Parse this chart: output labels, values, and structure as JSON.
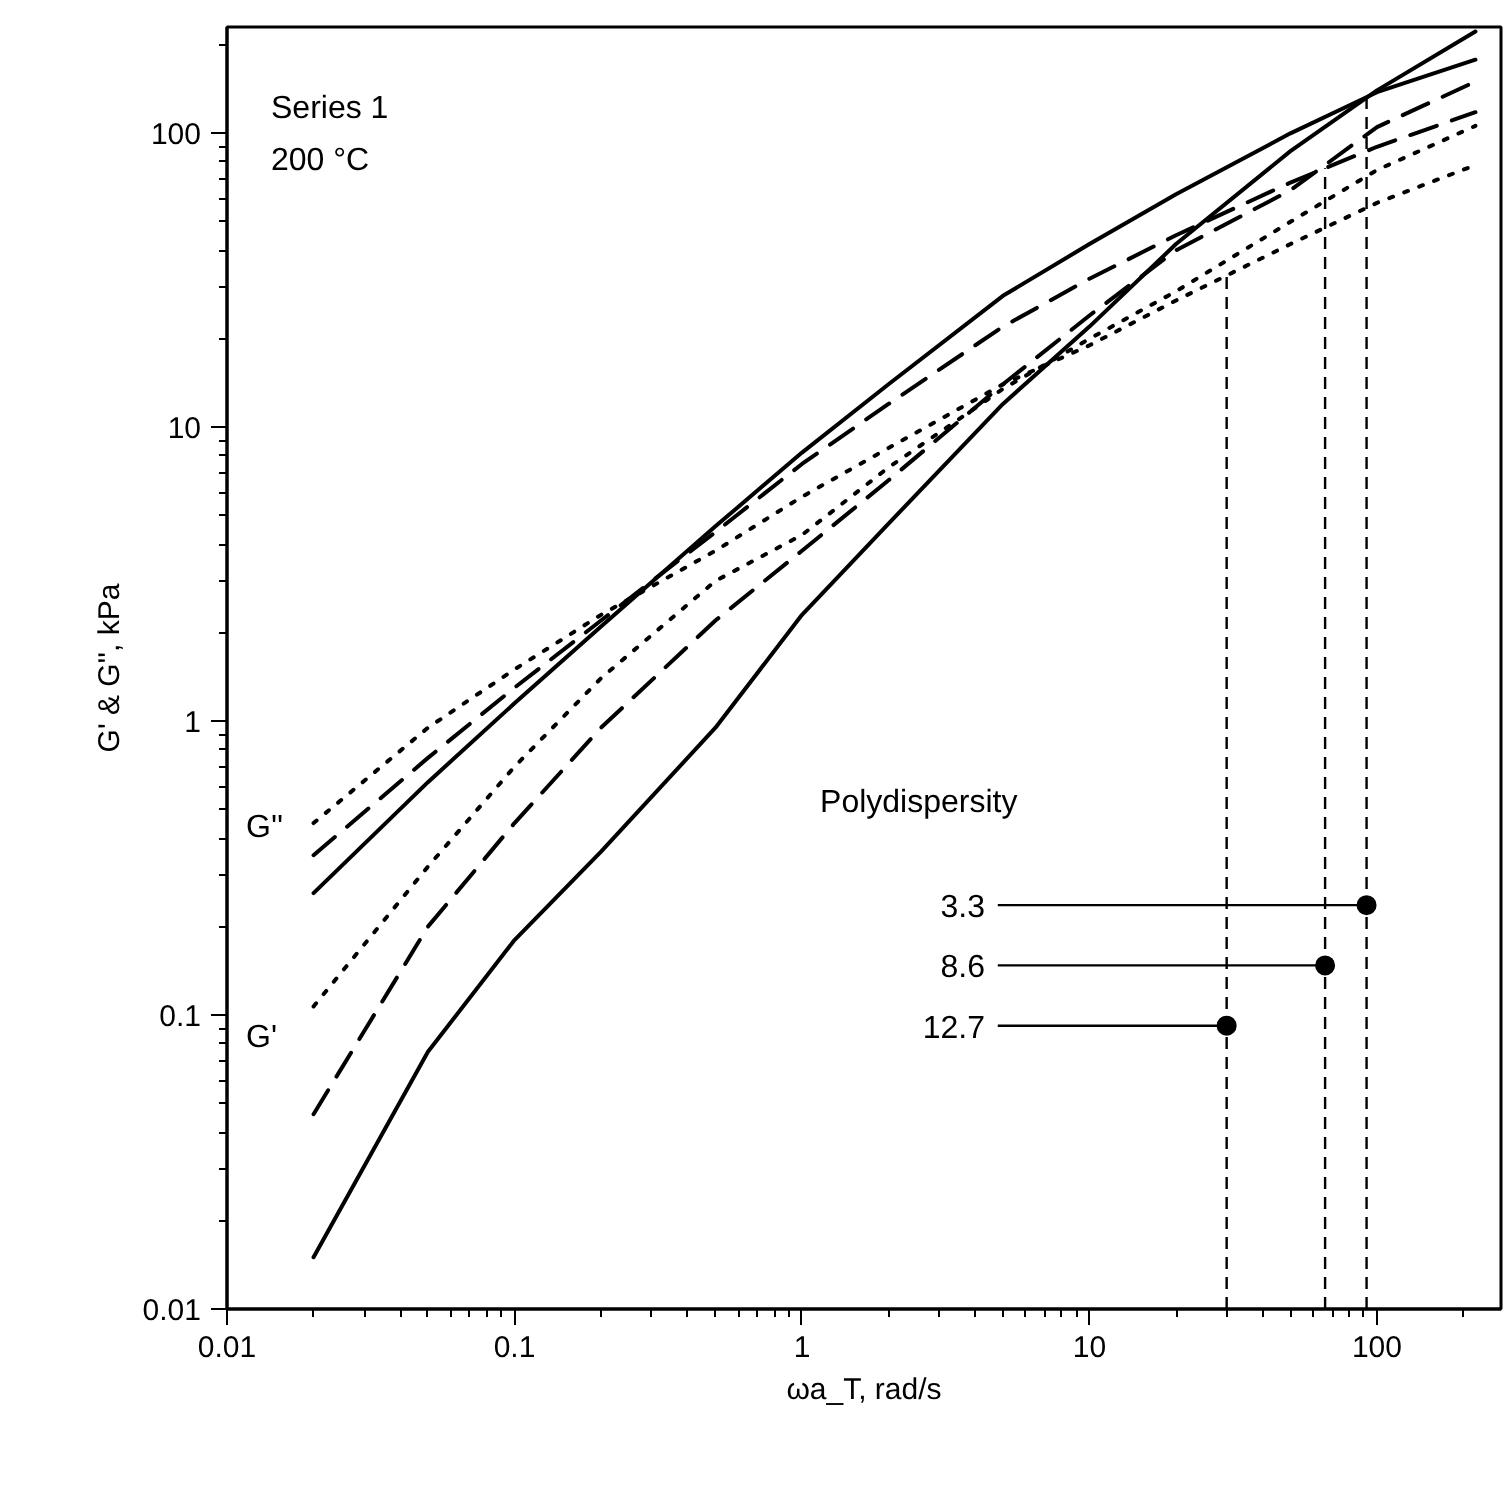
{
  "chart_data": {
    "type": "line",
    "xlabel": "ωa_T, rad/s",
    "ylabel": "G' & G'', kPa",
    "log": "xy",
    "xlim": [
      0.01,
      270
    ],
    "ylim": [
      0.01,
      230
    ],
    "xticks": [
      0.01,
      0.1,
      1,
      10,
      100
    ],
    "yticks": [
      0.01,
      0.1,
      1,
      10,
      100
    ],
    "grid": false,
    "x": [
      0.02,
      0.05,
      0.1,
      0.2,
      0.5,
      1,
      2,
      5,
      10,
      20,
      50,
      100,
      220
    ],
    "series": [
      {
        "color": "#000000",
        "line_style": "solid",
        "values": [
          0.26,
          0.62,
          1.15,
          2.1,
          4.6,
          8.2,
          14,
          28,
          42,
          62,
          100,
          138,
          178
        ]
      },
      {
        "color": "#000000",
        "line_style": "solid",
        "values": [
          0.015,
          0.075,
          0.18,
          0.36,
          0.95,
          2.3,
          4.7,
          12,
          22,
          42,
          87,
          140,
          222
        ]
      },
      {
        "color": "#000000",
        "line_style": "dashed",
        "values": [
          0.35,
          0.75,
          1.3,
          2.2,
          4.4,
          7.5,
          12,
          22,
          32,
          45,
          68,
          90,
          118
        ]
      },
      {
        "color": "#000000",
        "line_style": "dashed",
        "values": [
          0.046,
          0.2,
          0.45,
          0.95,
          2.2,
          3.8,
          6.6,
          14,
          24,
          40,
          64,
          105,
          150
        ]
      },
      {
        "color": "#000000",
        "line_style": "dotted",
        "values": [
          0.45,
          0.95,
          1.5,
          2.3,
          3.8,
          5.8,
          8.5,
          14,
          19,
          27,
          42,
          58,
          78
        ]
      },
      {
        "color": "#000000",
        "line_style": "dotted",
        "values": [
          0.107,
          0.32,
          0.7,
          1.4,
          3.0,
          4.3,
          7.3,
          13.5,
          20,
          29,
          50,
          75,
          106
        ]
      }
    ],
    "ref_lines": [
      {
        "axis": "x",
        "value": 92,
        "line_style": "dashed"
      },
      {
        "axis": "x",
        "value": 66,
        "line_style": "dashed"
      },
      {
        "axis": "x",
        "value": 30,
        "line_style": "dashed"
      }
    ],
    "annotations": [
      "Series 1",
      "200 °C",
      "Polydispersity",
      "3.3",
      "8.6",
      "12.7",
      "G''",
      "G'"
    ]
  }
}
